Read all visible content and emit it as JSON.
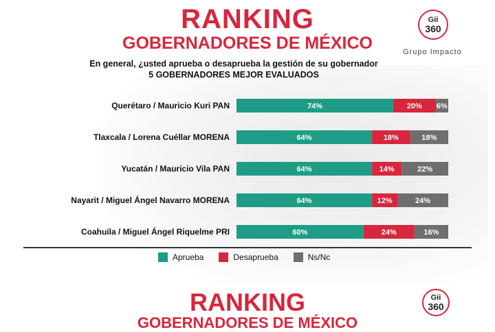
{
  "header": {
    "title": "RANKING",
    "subtitle": "GOBERNADORES DE MÉXICO",
    "logo_text_top": "Gii",
    "logo_text_num": "360",
    "logo_caption": "Grupo Impacto"
  },
  "question": {
    "line1": "En general, ¿usted aprueba o desaprueba la gestión de su gobernador",
    "line2": "5 GOBERNADORES MEJOR EVALUADOS"
  },
  "footer": {
    "title": "RANKING",
    "subtitle": "GOBERNADORES DE MÉXICO"
  },
  "colors": {
    "approve": "#1e9c86",
    "disapprove": "#d7263d",
    "nsnc": "#6e6e6e",
    "brand": "#d7263d"
  },
  "legend": {
    "approve": "Aprueba",
    "disapprove": "Desaprueba",
    "nsnc": "Ns/Nc"
  },
  "chart_data": {
    "type": "bar",
    "orientation": "horizontal",
    "stacked": true,
    "categories": [
      "Querétaro / Mauricio Kuri PAN",
      "Tlaxcala / Lorena Cuéllar MORENA",
      "Yucatán / Mauricio Vila PAN",
      "Nayarit / Miguel Ángel Navarro MORENA",
      "Coahuila / Miguel Ángel Riquelme PRI"
    ],
    "series": [
      {
        "name": "Aprueba",
        "values": [
          74,
          64,
          64,
          64,
          60
        ]
      },
      {
        "name": "Desaprueba",
        "values": [
          20,
          18,
          14,
          12,
          24
        ]
      },
      {
        "name": "Ns/Nc",
        "values": [
          6,
          18,
          22,
          24,
          16
        ]
      }
    ],
    "value_suffix": "%",
    "xlim": [
      0,
      100
    ],
    "legend_position": "bottom",
    "grid": false
  }
}
